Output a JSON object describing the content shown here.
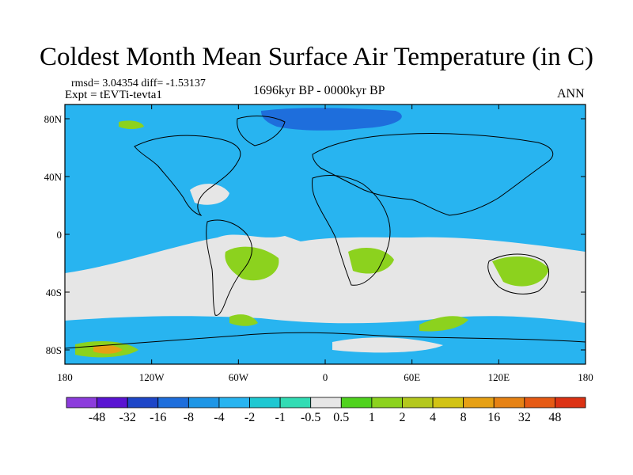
{
  "title": "Coldest Month Mean Surface Air Temperature (in C)",
  "stats_line": "rmsd= 3.04354 diff= -1.53137",
  "experiment_line": "Expt = tEVTi-tevta1",
  "period_line": "1696kyr BP - 0000kyr BP",
  "season_label": "ANN",
  "lat_ticks": [
    "80N",
    "40N",
    "0",
    "40S",
    "80S"
  ],
  "lon_ticks": [
    "180",
    "120W",
    "60W",
    "0",
    "60E",
    "120E",
    "180"
  ],
  "colorbar": {
    "colors": [
      "#8c3cdc",
      "#5a14d2",
      "#1e46c8",
      "#1e6edc",
      "#1e96e6",
      "#28b4f0",
      "#1ec8d2",
      "#32dcb4",
      "#e6e6e6",
      "#50d21e",
      "#8cd21e",
      "#b4c81e",
      "#d2c314",
      "#e6a014",
      "#e68214",
      "#e65a14",
      "#dc3214"
    ],
    "labels": [
      "-48",
      "-32",
      "-16",
      "-8",
      "-4",
      "-2",
      "-1",
      "-0.5",
      "0.5",
      "1",
      "2",
      "4",
      "8",
      "16",
      "32",
      "48"
    ]
  },
  "colors": {
    "ocean_base": "#28b4f0",
    "neutral": "#e6e6e6",
    "positive_small": "#8cd21e",
    "positive_large": "#e6a014",
    "negative_large": "#1e6edc",
    "coastline": "#000000"
  }
}
